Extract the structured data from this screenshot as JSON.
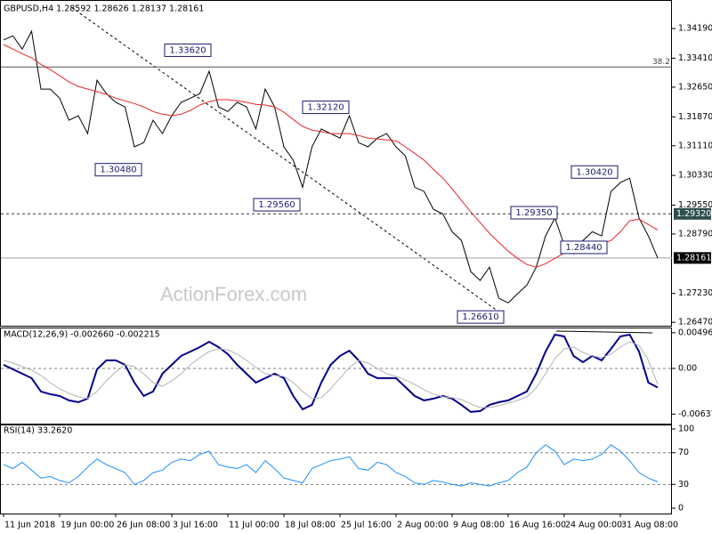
{
  "chart_data": [
    {
      "type": "line",
      "title": "GBPUSD,H4  1.28592 1.28626 1.28137 1.28161",
      "watermark": "ActionForex.com",
      "ylim": [
        1.2638,
        1.3494
      ],
      "yticks": [
        {
          "value": 1.3419,
          "label": "1.34190"
        },
        {
          "value": 1.3341,
          "label": "1.33410"
        },
        {
          "value": 1.3265,
          "label": "1.32650"
        },
        {
          "value": 1.3187,
          "label": "1.31870"
        },
        {
          "value": 1.3111,
          "label": "1.31110"
        },
        {
          "value": 1.3033,
          "label": "1.30330"
        },
        {
          "value": 1.2955,
          "label": "1.29550"
        },
        {
          "value": 1.2879,
          "label": "1.28790"
        },
        {
          "value": 1.2723,
          "label": "1.27230"
        },
        {
          "value": 1.2647,
          "label": "1.26470"
        }
      ],
      "grid": false,
      "series": [
        {
          "color": "#000000",
          "values": [
            1.3389,
            1.34,
            1.3365,
            1.3412,
            1.326,
            1.326,
            1.3236,
            1.3178,
            1.319,
            1.3143,
            1.3283,
            1.3248,
            1.3225,
            1.3213,
            1.3108,
            1.3119,
            1.3178,
            1.3143,
            1.319,
            1.3225,
            1.3236,
            1.3248,
            1.3307,
            1.3213,
            1.3201,
            1.3225,
            1.3213,
            1.3155,
            1.326,
            1.3213,
            1.3108,
            1.3073,
            1.3002,
            1.3108,
            1.3155,
            1.3143,
            1.3131,
            1.319,
            1.3119,
            1.3108,
            1.3131,
            1.3143,
            1.3108,
            1.3084,
            1.3002,
            1.2991,
            1.2944,
            1.2932,
            1.2885,
            1.2862,
            1.278,
            1.2757,
            1.2792,
            1.271,
            1.2698,
            1.2722,
            1.2745,
            1.2792,
            1.2874,
            1.2921,
            1.285,
            1.2827,
            1.2862,
            1.2885,
            1.2874,
            1.2991,
            1.3014,
            1.3026,
            1.2921,
            1.2874,
            1.2816
          ]
        },
        {
          "color": "#e8242a",
          "values": [
            1.3377,
            1.3365,
            1.3353,
            1.3342,
            1.3325,
            1.3311,
            1.3295,
            1.3279,
            1.3267,
            1.326,
            1.3253,
            1.3246,
            1.3236,
            1.3229,
            1.3222,
            1.3213,
            1.3201,
            1.3194,
            1.319,
            1.3194,
            1.3204,
            1.3218,
            1.3227,
            1.3232,
            1.3232,
            1.3229,
            1.3225,
            1.322,
            1.3218,
            1.3213,
            1.3199,
            1.318,
            1.3162,
            1.3152,
            1.3148,
            1.3143,
            1.3143,
            1.3143,
            1.3138,
            1.3131,
            1.3129,
            1.3126,
            1.3124,
            1.3108,
            1.3091,
            1.3073,
            1.3049,
            1.3026,
            1.2998,
            1.2967,
            1.2937,
            1.2909,
            1.2881,
            1.2857,
            1.2834,
            1.2815,
            1.2799,
            1.2792,
            1.2801,
            1.2815,
            1.2829,
            1.2839,
            1.2843,
            1.2848,
            1.2853,
            1.2862,
            1.2885,
            1.2914,
            1.2918,
            1.2904,
            1.289
          ]
        }
      ],
      "levels": [
        {
          "value": 1.3318,
          "label": "38.2",
          "style": "solid"
        },
        {
          "value": 1.2932,
          "label": "1.29320",
          "style": "dashed"
        },
        {
          "value": 1.28161,
          "label": "1.28161",
          "style": "current"
        }
      ],
      "annotations": [
        {
          "value": 1.3362,
          "label": "1.33620"
        },
        {
          "value": 1.3212,
          "label": "1.32120"
        },
        {
          "value": 1.3048,
          "label": "1.30480"
        },
        {
          "value": 1.2956,
          "label": "1.29560"
        },
        {
          "value": 1.3042,
          "label": "1.30420"
        },
        {
          "value": 1.2935,
          "label": "1.29350"
        },
        {
          "value": 1.2844,
          "label": "1.28440"
        },
        {
          "value": 1.2661,
          "label": "1.26610"
        }
      ]
    },
    {
      "type": "line",
      "title": "MACD(12,26,9) -0.002660 -0.002215",
      "ylim": [
        -0.0077,
        0.0057
      ],
      "yticks": [
        0.004968,
        {
          "value": 0,
          "label": "0.00"
        },
        -0.006372
      ],
      "grid": "inner",
      "series": [
        {
          "color": "#00008b",
          "values": [
            0.000496,
            -0.000124,
            -0.000744,
            -0.001364,
            -0.003224,
            -0.003596,
            -0.003844,
            -0.004464,
            -0.004712,
            -0.004216,
            -0.000124,
            0.001116,
            0.001116,
            0.000496,
            -0.001984,
            -0.003844,
            -0.003224,
            -0.000744,
            0.000496,
            0.001736,
            0.002356,
            0.002976,
            0.00372,
            0.002976,
            0.001984,
            0.000496,
            -0.000744,
            -0.001984,
            -0.001364,
            -0.000744,
            -0.001364,
            -0.003844,
            -0.005704,
            -0.005084,
            -0.001984,
            0.000496,
            0.001736,
            0.00248,
            0.001116,
            -0.000744,
            -0.001364,
            -0.001364,
            -0.001364,
            -0.002604,
            -0.003844,
            -0.004464,
            -0.004216,
            -0.003844,
            -0.004216,
            -0.005084,
            -0.006076,
            -0.005952,
            -0.005084,
            -0.004712,
            -0.004464,
            -0.003844,
            -0.003224,
            -0.000744,
            0.002356,
            0.004712,
            0.004464,
            0.001736,
            0.000868,
            0.001736,
            0.001116,
            0.002728,
            0.004464,
            0.004712,
            0.002356,
            -0.001984,
            -0.00266
          ]
        },
        {
          "color": "#b4b4b4",
          "values": [
            0.001116,
            0.000744,
            0.000248,
            -0.000248,
            -0.000992,
            -0.001984,
            -0.002852,
            -0.003472,
            -0.003968,
            -0.004216,
            -0.003224,
            -0.001736,
            -0.000496,
            0.000496,
            0.000248,
            -0.000744,
            -0.001984,
            -0.00248,
            -0.001736,
            -0.000744,
            0.000496,
            0.001488,
            0.002356,
            0.002728,
            0.002604,
            0.001984,
            0.001116,
            0.000124,
            -0.000744,
            -0.000992,
            -0.001116,
            -0.001984,
            -0.003224,
            -0.004216,
            -0.004092,
            -0.002852,
            -0.001364,
            0.000124,
            0.001116,
            0.000744,
            0,
            -0.000744,
            -0.001116,
            -0.001612,
            -0.002232,
            -0.002976,
            -0.003596,
            -0.003968,
            -0.004092,
            -0.00434,
            -0.00496,
            -0.005456,
            -0.005456,
            -0.005208,
            -0.004836,
            -0.004464,
            -0.003968,
            -0.002728,
            -0.000744,
            0.001364,
            0.002728,
            0.002976,
            0.002232,
            0.001736,
            0.001488,
            0.001984,
            0.002976,
            0.00372,
            0.003224,
            0.001116,
            -0.002215
          ]
        }
      ]
    },
    {
      "type": "line",
      "title": "RSI(14) 33.2620",
      "ylim": [
        -6.7,
        105.6
      ],
      "yticks": [
        100,
        70,
        30,
        0
      ],
      "grid": "inner",
      "categories": [
        "11 Jun 2018",
        null,
        null,
        null,
        null,
        null,
        "19 Jun 00:00",
        null,
        null,
        null,
        null,
        null,
        "26 Jun 08:00",
        null,
        null,
        null,
        null,
        null,
        "3 Jul 16:00",
        null,
        null,
        null,
        null,
        null,
        "11 Jul 00:00",
        null,
        null,
        null,
        null,
        null,
        "18 Jul 08:00",
        null,
        null,
        null,
        null,
        null,
        "25 Jul 16:00",
        null,
        null,
        null,
        null,
        null,
        "2 Aug 00:00",
        null,
        null,
        null,
        null,
        null,
        "9 Aug 08:00",
        null,
        null,
        null,
        null,
        null,
        "16 Aug 16:00",
        null,
        null,
        null,
        null,
        null,
        "24 Aug 00:00",
        null,
        null,
        null,
        null,
        null,
        "31 Aug 08:00",
        null,
        null,
        null,
        null
      ],
      "series": [
        {
          "color": "#1e90ff",
          "values": [
            55,
            50,
            58,
            48,
            38,
            40,
            35,
            32,
            40,
            52,
            62,
            55,
            50,
            45,
            30,
            35,
            45,
            48,
            58,
            62,
            60,
            68,
            72,
            55,
            52,
            50,
            55,
            45,
            60,
            50,
            38,
            35,
            32,
            50,
            55,
            60,
            62,
            65,
            50,
            48,
            58,
            55,
            45,
            40,
            32,
            30,
            35,
            33,
            30,
            28,
            32,
            30,
            28,
            32,
            35,
            45,
            52,
            70,
            80,
            72,
            55,
            62,
            60,
            62,
            68,
            80,
            72,
            60,
            45,
            38,
            33.262
          ]
        }
      ]
    }
  ]
}
